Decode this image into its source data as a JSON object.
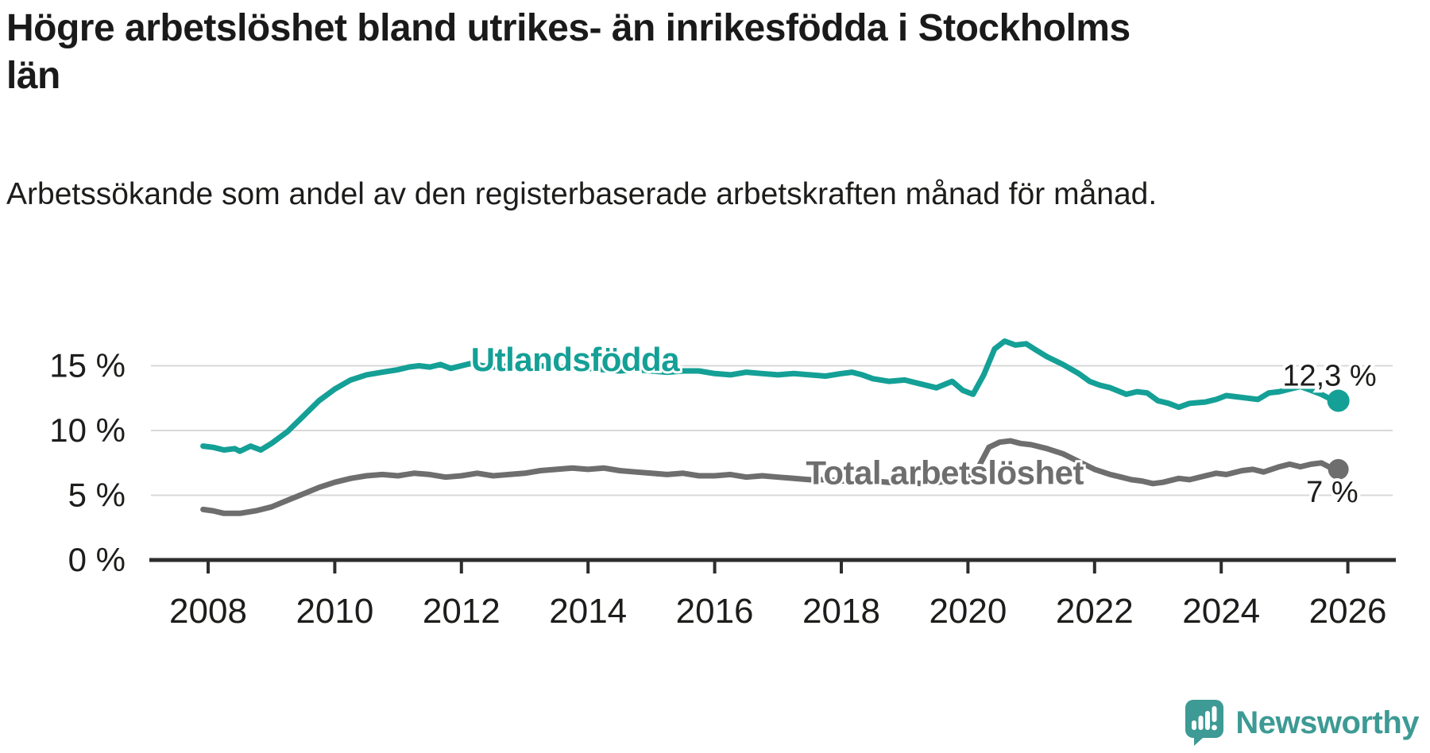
{
  "header": {
    "title": "Högre arbetslöshet bland utrikes- än inrikesfödda i Stockholms län",
    "subtitle": "Arbetssökande som andel av den registerbaserade arbetskraften månad för månad."
  },
  "branding": {
    "name": "Newsworthy",
    "icon": "newsworthy-speech-bubble-bar-chart-icon"
  },
  "colors": {
    "foreign_born_line": "#14a096",
    "total_line": "#6e6e6e",
    "text": "#1d1d1b",
    "gridline": "#d8d8d8",
    "axis": "#2d2d2d",
    "brand": "#3d9a94",
    "background": "#ffffff"
  },
  "chart_data": {
    "type": "line",
    "title": "Högre arbetslöshet bland utrikes- än inrikesfödda i Stockholms län",
    "subtitle": "Arbetssökande som andel av den registerbaserade arbetskraften månad för månad.",
    "grid": "horizontal-only",
    "legend": "inline-labels",
    "x_axis": {
      "ticks": [
        2008,
        2010,
        2012,
        2014,
        2016,
        2018,
        2020,
        2022,
        2024,
        2026
      ]
    },
    "y_axis": {
      "unit": "%",
      "ylim": [
        0,
        17.5
      ],
      "ticks": [
        {
          "label": "0 %",
          "value": 0
        },
        {
          "label": "5 %",
          "value": 5
        },
        {
          "label": "10 %",
          "value": 10
        },
        {
          "label": "15 %",
          "value": 15
        }
      ],
      "gridlines": [
        5,
        10,
        15
      ]
    },
    "series": [
      {
        "name": "Utlandsfödda",
        "color": "#14a096",
        "end_label": "12,3 %",
        "end_value": 12.3,
        "end_label_position": "above",
        "dot_radius": 14,
        "inline_label": {
          "text": "Utlandsfödda",
          "year": 2012.15,
          "value": 15.5
        },
        "points": [
          [
            2007.92,
            8.8
          ],
          [
            2008.08,
            8.7
          ],
          [
            2008.25,
            8.5
          ],
          [
            2008.42,
            8.6
          ],
          [
            2008.5,
            8.4
          ],
          [
            2008.67,
            8.8
          ],
          [
            2008.83,
            8.5
          ],
          [
            2009.0,
            9.0
          ],
          [
            2009.25,
            9.9
          ],
          [
            2009.5,
            11.1
          ],
          [
            2009.75,
            12.3
          ],
          [
            2010.0,
            13.2
          ],
          [
            2010.25,
            13.9
          ],
          [
            2010.5,
            14.3
          ],
          [
            2010.75,
            14.5
          ],
          [
            2011.0,
            14.7
          ],
          [
            2011.17,
            14.9
          ],
          [
            2011.33,
            15.0
          ],
          [
            2011.5,
            14.9
          ],
          [
            2011.67,
            15.1
          ],
          [
            2011.83,
            14.8
          ],
          [
            2012.0,
            15.0
          ],
          [
            2012.17,
            15.2
          ],
          [
            2012.33,
            15.0
          ],
          [
            2012.5,
            14.9
          ],
          [
            2012.75,
            15.0
          ],
          [
            2013.0,
            14.9
          ],
          [
            2013.25,
            15.0
          ],
          [
            2013.5,
            14.9
          ],
          [
            2013.75,
            14.8
          ],
          [
            2014.0,
            14.8
          ],
          [
            2014.25,
            14.7
          ],
          [
            2014.5,
            14.6
          ],
          [
            2014.75,
            14.7
          ],
          [
            2015.0,
            14.6
          ],
          [
            2015.25,
            14.5
          ],
          [
            2015.5,
            14.6
          ],
          [
            2015.75,
            14.6
          ],
          [
            2016.0,
            14.4
          ],
          [
            2016.25,
            14.3
          ],
          [
            2016.5,
            14.5
          ],
          [
            2016.75,
            14.4
          ],
          [
            2017.0,
            14.3
          ],
          [
            2017.25,
            14.4
          ],
          [
            2017.5,
            14.3
          ],
          [
            2017.75,
            14.2
          ],
          [
            2018.0,
            14.4
          ],
          [
            2018.17,
            14.5
          ],
          [
            2018.33,
            14.3
          ],
          [
            2018.5,
            14.0
          ],
          [
            2018.75,
            13.8
          ],
          [
            2019.0,
            13.9
          ],
          [
            2019.25,
            13.6
          ],
          [
            2019.5,
            13.3
          ],
          [
            2019.75,
            13.8
          ],
          [
            2019.92,
            13.1
          ],
          [
            2020.08,
            12.8
          ],
          [
            2020.25,
            14.3
          ],
          [
            2020.42,
            16.3
          ],
          [
            2020.58,
            16.9
          ],
          [
            2020.75,
            16.6
          ],
          [
            2020.92,
            16.7
          ],
          [
            2021.08,
            16.2
          ],
          [
            2021.25,
            15.7
          ],
          [
            2021.5,
            15.1
          ],
          [
            2021.75,
            14.4
          ],
          [
            2021.92,
            13.8
          ],
          [
            2022.08,
            13.5
          ],
          [
            2022.25,
            13.3
          ],
          [
            2022.5,
            12.8
          ],
          [
            2022.67,
            13.0
          ],
          [
            2022.83,
            12.9
          ],
          [
            2023.0,
            12.3
          ],
          [
            2023.17,
            12.1
          ],
          [
            2023.33,
            11.8
          ],
          [
            2023.5,
            12.1
          ],
          [
            2023.75,
            12.2
          ],
          [
            2023.92,
            12.4
          ],
          [
            2024.08,
            12.7
          ],
          [
            2024.25,
            12.6
          ],
          [
            2024.42,
            12.5
          ],
          [
            2024.58,
            12.4
          ],
          [
            2024.75,
            12.9
          ],
          [
            2024.92,
            13.0
          ],
          [
            2025.08,
            13.2
          ],
          [
            2025.25,
            13.4
          ],
          [
            2025.42,
            13.1
          ],
          [
            2025.58,
            12.8
          ],
          [
            2025.7,
            12.5
          ],
          [
            2025.78,
            12.1
          ],
          [
            2025.85,
            12.3
          ]
        ]
      },
      {
        "name": "Total arbetslöshet",
        "color": "#6e6e6e",
        "end_label": "7 %",
        "end_value": 7.0,
        "end_label_position": "below",
        "dot_radius": 13,
        "inline_label": {
          "text": "Total arbetslöshet",
          "year": 2017.44,
          "value": 6.75
        },
        "points": [
          [
            2007.92,
            3.9
          ],
          [
            2008.08,
            3.8
          ],
          [
            2008.25,
            3.6
          ],
          [
            2008.5,
            3.6
          ],
          [
            2008.75,
            3.8
          ],
          [
            2009.0,
            4.1
          ],
          [
            2009.25,
            4.6
          ],
          [
            2009.5,
            5.1
          ],
          [
            2009.75,
            5.6
          ],
          [
            2010.0,
            6.0
          ],
          [
            2010.25,
            6.3
          ],
          [
            2010.5,
            6.5
          ],
          [
            2010.75,
            6.6
          ],
          [
            2011.0,
            6.5
          ],
          [
            2011.25,
            6.7
          ],
          [
            2011.5,
            6.6
          ],
          [
            2011.75,
            6.4
          ],
          [
            2012.0,
            6.5
          ],
          [
            2012.25,
            6.7
          ],
          [
            2012.5,
            6.5
          ],
          [
            2012.75,
            6.6
          ],
          [
            2013.0,
            6.7
          ],
          [
            2013.25,
            6.9
          ],
          [
            2013.5,
            7.0
          ],
          [
            2013.75,
            7.1
          ],
          [
            2014.0,
            7.0
          ],
          [
            2014.25,
            7.1
          ],
          [
            2014.5,
            6.9
          ],
          [
            2014.75,
            6.8
          ],
          [
            2015.0,
            6.7
          ],
          [
            2015.25,
            6.6
          ],
          [
            2015.5,
            6.7
          ],
          [
            2015.75,
            6.5
          ],
          [
            2016.0,
            6.5
          ],
          [
            2016.25,
            6.6
          ],
          [
            2016.5,
            6.4
          ],
          [
            2016.75,
            6.5
          ],
          [
            2017.0,
            6.4
          ],
          [
            2017.25,
            6.3
          ],
          [
            2017.5,
            6.2
          ],
          [
            2017.75,
            6.2
          ],
          [
            2018.0,
            6.1
          ],
          [
            2018.25,
            6.2
          ],
          [
            2018.5,
            6.1
          ],
          [
            2018.75,
            6.0
          ],
          [
            2019.0,
            6.0
          ],
          [
            2019.25,
            5.9
          ],
          [
            2019.5,
            6.0
          ],
          [
            2019.75,
            6.1
          ],
          [
            2020.0,
            6.3
          ],
          [
            2020.17,
            7.2
          ],
          [
            2020.33,
            8.7
          ],
          [
            2020.5,
            9.1
          ],
          [
            2020.67,
            9.2
          ],
          [
            2020.83,
            9.0
          ],
          [
            2021.0,
            8.9
          ],
          [
            2021.25,
            8.6
          ],
          [
            2021.5,
            8.2
          ],
          [
            2021.75,
            7.6
          ],
          [
            2022.0,
            7.0
          ],
          [
            2022.25,
            6.6
          ],
          [
            2022.42,
            6.4
          ],
          [
            2022.58,
            6.2
          ],
          [
            2022.75,
            6.1
          ],
          [
            2022.92,
            5.9
          ],
          [
            2023.08,
            6.0
          ],
          [
            2023.33,
            6.3
          ],
          [
            2023.5,
            6.2
          ],
          [
            2023.75,
            6.5
          ],
          [
            2023.92,
            6.7
          ],
          [
            2024.08,
            6.6
          ],
          [
            2024.33,
            6.9
          ],
          [
            2024.5,
            7.0
          ],
          [
            2024.67,
            6.8
          ],
          [
            2024.92,
            7.2
          ],
          [
            2025.08,
            7.4
          ],
          [
            2025.25,
            7.2
          ],
          [
            2025.42,
            7.4
          ],
          [
            2025.58,
            7.5
          ],
          [
            2025.7,
            7.2
          ],
          [
            2025.78,
            6.8
          ],
          [
            2025.85,
            7.0
          ]
        ]
      }
    ]
  }
}
